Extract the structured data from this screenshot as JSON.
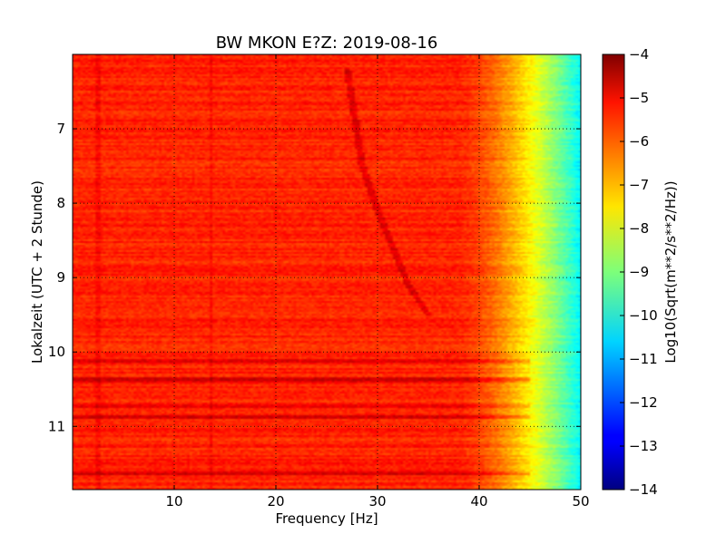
{
  "chart_data": {
    "type": "heatmap",
    "title": "BW MKON E?Z: 2019-08-16",
    "xlabel": "Frequency [Hz]",
    "ylabel": "Lokalzeit (UTC + 2 Stunde)",
    "xlim": [
      0,
      50
    ],
    "ylim_top_to_bottom": [
      6,
      11.85
    ],
    "x_ticks": [
      10,
      20,
      30,
      40,
      50
    ],
    "x_tick_labels": [
      "10",
      "20",
      "30",
      "40",
      "50"
    ],
    "y_ticks": [
      7,
      8,
      9,
      10,
      11
    ],
    "y_tick_labels": [
      "7",
      "8",
      "9",
      "10",
      "11"
    ],
    "grid": true,
    "colormap": "jet",
    "colorbar": {
      "label": "Log10(Sqrt(m**2/s**2/Hz))",
      "range": [
        -14,
        -4
      ],
      "ticks": [
        -4,
        -5,
        -6,
        -7,
        -8,
        -9,
        -10,
        -11,
        -12,
        -13,
        -14
      ],
      "tick_labels": [
        "−4",
        "−5",
        "−6",
        "−7",
        "−8",
        "−9",
        "−10",
        "−11",
        "−12",
        "−13",
        "−14"
      ]
    },
    "field": {
      "baseline_value": -5.6,
      "rolloff_start_hz": 38,
      "rolloff_end_hz": 50,
      "value_at_max_hz": -10.3,
      "noisy_band_hours": [
        [
          10.1,
          10.15
        ],
        [
          10.35,
          10.4
        ],
        [
          10.7,
          10.75
        ],
        [
          10.85,
          10.9
        ],
        [
          11.6,
          11.65
        ]
      ],
      "drifting_line": [
        [
          27,
          6.2
        ],
        [
          28.5,
          7.5
        ],
        [
          30,
          8.1
        ],
        [
          31.5,
          8.6
        ],
        [
          33,
          9.1
        ],
        [
          35,
          9.5
        ]
      ]
    }
  }
}
